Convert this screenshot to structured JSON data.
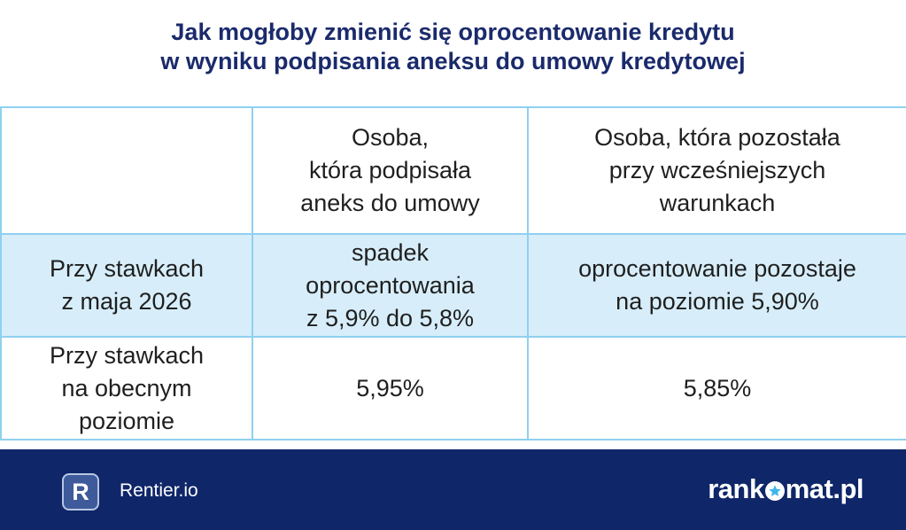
{
  "title": {
    "line1": "Jak mogłoby zmienić się oprocentowanie kredytu",
    "line2": "w wyniku podpisania aneksu do umowy kredytowej"
  },
  "table": {
    "header": {
      "col_empty": "",
      "col_signed": [
        "Osoba,",
        "która podpisała",
        "aneks do umowy"
      ],
      "col_stayed": [
        "Osoba, która pozostała",
        "przy wcześniejszych",
        "warunkach"
      ]
    },
    "rows": [
      {
        "label": [
          "Przy stawkach",
          "z maja 2026"
        ],
        "signed": [
          "spadek",
          "oprocentowania",
          "z 5,9% do 5,8%"
        ],
        "stayed": [
          "oprocentowanie pozostaje",
          "na poziomie 5,90%"
        ]
      },
      {
        "label": [
          "Przy stawkach",
          "na obecnym",
          "poziomie"
        ],
        "signed": [
          "5,95%"
        ],
        "stayed": [
          "5,85%"
        ]
      }
    ]
  },
  "footer": {
    "rentier_logo_letter": "R",
    "rentier_label": "Rentier.io",
    "rankomat_prefix": "rank",
    "rankomat_suffix": "mat.pl",
    "rankomat_icon": "star-in-circle-icon",
    "background_color": "#0f2669"
  },
  "colors": {
    "title": "#1a2a6c",
    "table_border": "#8fd0ef",
    "highlight_row": "#d7eefa"
  }
}
